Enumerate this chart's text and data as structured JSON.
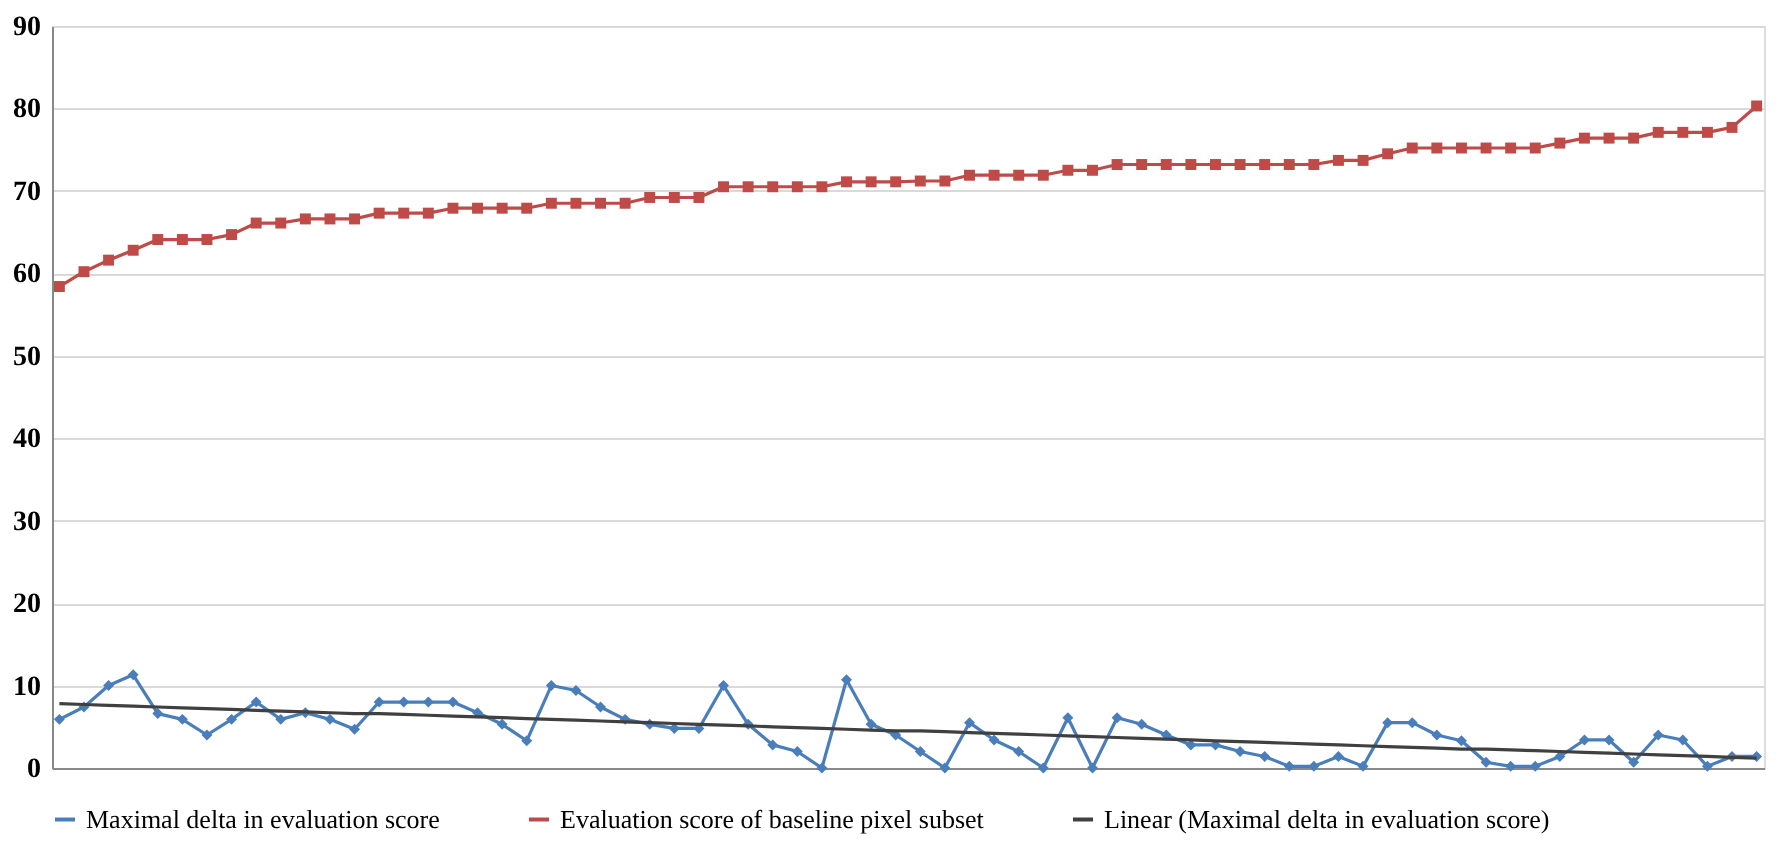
{
  "chart_data": {
    "type": "line",
    "categories": [
      null,
      null,
      null,
      null,
      null,
      null,
      null,
      null,
      null,
      null,
      null,
      null,
      null,
      null,
      null,
      null,
      null,
      null,
      null,
      null,
      null,
      null,
      null,
      null,
      null,
      null,
      null,
      null,
      null,
      null,
      null,
      null,
      null,
      null,
      null,
      null,
      null,
      null,
      null,
      null,
      null,
      null,
      null,
      null,
      null,
      null,
      null,
      null,
      null,
      null,
      null,
      null,
      null,
      null,
      null,
      null,
      null,
      null,
      null,
      null,
      null,
      null,
      null,
      null,
      null,
      null,
      null,
      null,
      null,
      null
    ],
    "series": [
      {
        "name": "Maximal delta in evaluation score",
        "color": "#4a7ebb",
        "marker": "diamond",
        "values": [
          5.9,
          7.4,
          10.0,
          11.3,
          6.6,
          5.9,
          4.0,
          5.9,
          8.0,
          5.9,
          6.7,
          5.9,
          4.7,
          8.0,
          8.0,
          8.0,
          8.0,
          6.7,
          5.3,
          3.3,
          10.0,
          9.4,
          7.4,
          5.9,
          5.3,
          4.8,
          4.8,
          10.0,
          5.3,
          2.8,
          2.0,
          0,
          10.7,
          5.3,
          4.0,
          2.0,
          0,
          5.5,
          3.4,
          2.0,
          0,
          6.1,
          0,
          6.1,
          5.3,
          4.0,
          2.8,
          2.8,
          2.0,
          1.4,
          0.2,
          0.2,
          1.4,
          0.2,
          5.5,
          5.5,
          4.0,
          3.3,
          0.7,
          0.2,
          0.2,
          1.4,
          3.4,
          3.4,
          0.7,
          4.0,
          3.4,
          0.2,
          1.4,
          1.4
        ]
      },
      {
        "name": "Evaluation score of baseline pixel subset",
        "color": "#be4b48",
        "marker": "square",
        "values": [
          58.4,
          60.2,
          61.6,
          62.8,
          64.1,
          64.1,
          64.1,
          64.7,
          66.1,
          66.1,
          66.6,
          66.6,
          66.6,
          67.3,
          67.3,
          67.3,
          67.9,
          67.9,
          67.9,
          67.9,
          68.5,
          68.5,
          68.5,
          68.5,
          69.2,
          69.2,
          69.2,
          70.5,
          70.5,
          70.5,
          70.5,
          70.5,
          71.1,
          71.1,
          71.1,
          71.2,
          71.2,
          71.9,
          71.9,
          71.9,
          71.9,
          72.5,
          72.5,
          73.2,
          73.2,
          73.2,
          73.2,
          73.2,
          73.2,
          73.2,
          73.2,
          73.2,
          73.7,
          73.7,
          74.5,
          75.2,
          75.2,
          75.2,
          75.2,
          75.2,
          75.2,
          75.8,
          76.4,
          76.4,
          76.4,
          77.1,
          77.1,
          77.1,
          77.7,
          80.3
        ]
      },
      {
        "name": "Linear (Maximal delta in evaluation score)",
        "color": "#404040",
        "marker": "none",
        "values": [
          7.8,
          7.7,
          7.6,
          7.5,
          7.4,
          7.3,
          7.2,
          7.1,
          7.0,
          6.9,
          6.8,
          6.7,
          6.6,
          6.6,
          6.5,
          6.4,
          6.3,
          6.2,
          6.1,
          6.0,
          5.9,
          5.8,
          5.7,
          5.6,
          5.5,
          5.4,
          5.3,
          5.2,
          5.1,
          5.0,
          4.9,
          4.8,
          4.7,
          4.6,
          4.5,
          4.5,
          4.4,
          4.3,
          4.2,
          4.1,
          4.0,
          3.9,
          3.8,
          3.7,
          3.6,
          3.5,
          3.4,
          3.3,
          3.2,
          3.1,
          3.0,
          2.9,
          2.8,
          2.7,
          2.6,
          2.5,
          2.4,
          2.3,
          2.3,
          2.2,
          2.1,
          2.0,
          1.9,
          1.8,
          1.7,
          1.6,
          1.5,
          1.4,
          1.3,
          1.2
        ]
      }
    ],
    "ylim": [
      0,
      90
    ],
    "yticks": [
      0,
      10,
      20,
      30,
      40,
      50,
      60,
      70,
      80,
      90
    ],
    "grid": "y",
    "legend": "bottom",
    "tick_labels": "y"
  }
}
